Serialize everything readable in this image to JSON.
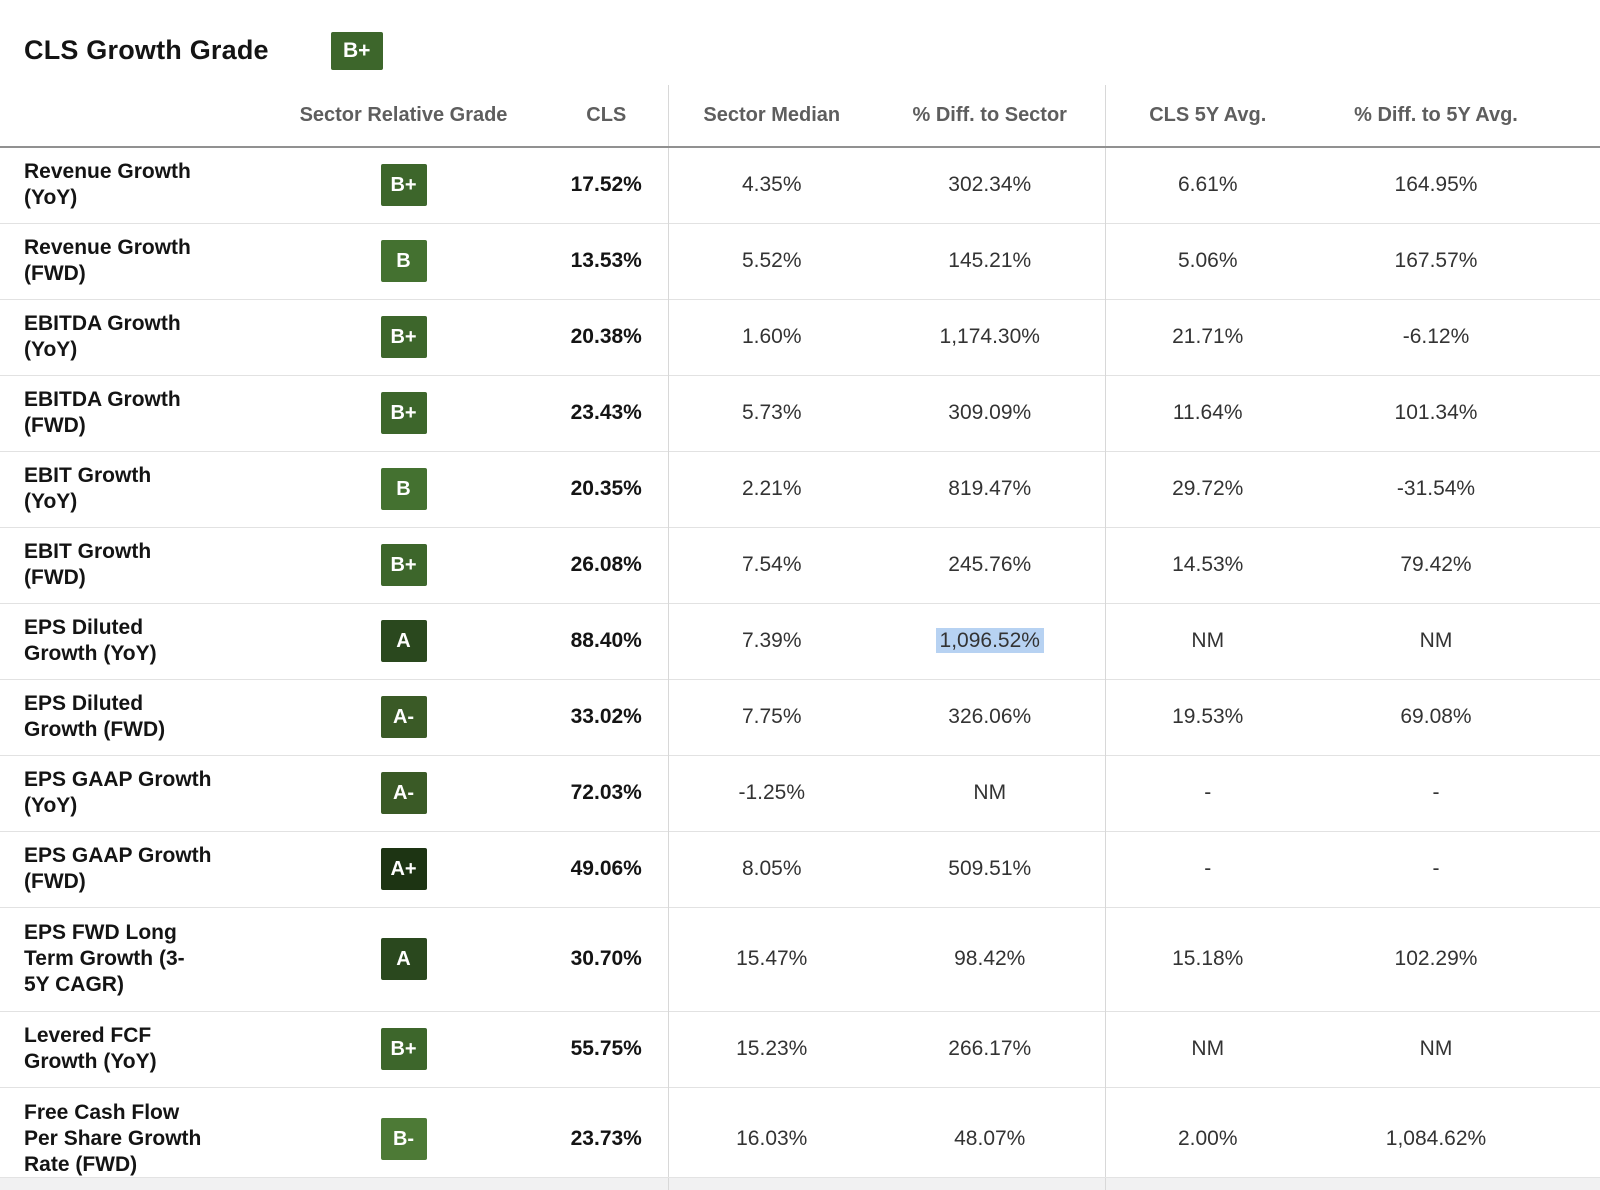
{
  "header": {
    "title": "CLS Growth Grade",
    "grade": "B+"
  },
  "grade_colors": {
    "A+": "#1d3413",
    "A": "#2a481e",
    "A-": "#3a5a26",
    "B+": "#3d662b",
    "B": "#447130",
    "B-": "#4d7a36"
  },
  "colors": {
    "header_text": "#5e5e5e",
    "selection_highlight": "#b7d2f2",
    "row_border": "#e2e2e2",
    "header_border": "#919191",
    "column_divider": "#d8d8d8"
  },
  "table": {
    "columns": [
      {
        "key": "grade",
        "label": "Sector Relative Grade"
      },
      {
        "key": "cls",
        "label": "CLS"
      },
      {
        "key": "sector_median",
        "label": "Sector Median"
      },
      {
        "key": "diff_sector",
        "label": "% Diff. to Sector"
      },
      {
        "key": "cls_5y",
        "label": "CLS 5Y Avg."
      },
      {
        "key": "diff_5y",
        "label": "% Diff. to 5Y Avg."
      }
    ],
    "rows": [
      {
        "label": "Revenue Growth\n(YoY)",
        "grade": "B+",
        "cls": "17.52%",
        "sector_median": "4.35%",
        "diff_sector": "302.34%",
        "cls_5y": "6.61%",
        "diff_5y": "164.95%"
      },
      {
        "label": "Revenue Growth\n(FWD)",
        "grade": "B",
        "cls": "13.53%",
        "sector_median": "5.52%",
        "diff_sector": "145.21%",
        "cls_5y": "5.06%",
        "diff_5y": "167.57%"
      },
      {
        "label": "EBITDA Growth\n(YoY)",
        "grade": "B+",
        "cls": "20.38%",
        "sector_median": "1.60%",
        "diff_sector": "1,174.30%",
        "cls_5y": "21.71%",
        "diff_5y": "-6.12%"
      },
      {
        "label": "EBITDA Growth\n(FWD)",
        "grade": "B+",
        "cls": "23.43%",
        "sector_median": "5.73%",
        "diff_sector": "309.09%",
        "cls_5y": "11.64%",
        "diff_5y": "101.34%"
      },
      {
        "label": "EBIT Growth\n(YoY)",
        "grade": "B",
        "cls": "20.35%",
        "sector_median": "2.21%",
        "diff_sector": "819.47%",
        "cls_5y": "29.72%",
        "diff_5y": "-31.54%"
      },
      {
        "label": "EBIT Growth\n(FWD)",
        "grade": "B+",
        "cls": "26.08%",
        "sector_median": "7.54%",
        "diff_sector": "245.76%",
        "cls_5y": "14.53%",
        "diff_5y": "79.42%"
      },
      {
        "label": "EPS Diluted\nGrowth (YoY)",
        "grade": "A",
        "cls": "88.40%",
        "sector_median": "7.39%",
        "diff_sector": "1,096.52%",
        "cls_5y": "NM",
        "diff_5y": "NM",
        "highlight": "diff_sector"
      },
      {
        "label": "EPS Diluted\nGrowth (FWD)",
        "grade": "A-",
        "cls": "33.02%",
        "sector_median": "7.75%",
        "diff_sector": "326.06%",
        "cls_5y": "19.53%",
        "diff_5y": "69.08%"
      },
      {
        "label": "EPS GAAP Growth\n(YoY)",
        "grade": "A-",
        "cls": "72.03%",
        "sector_median": "-1.25%",
        "diff_sector": "NM",
        "cls_5y": "-",
        "diff_5y": "-"
      },
      {
        "label": "EPS GAAP Growth\n(FWD)",
        "grade": "A+",
        "cls": "49.06%",
        "sector_median": "8.05%",
        "diff_sector": "509.51%",
        "cls_5y": "-",
        "diff_5y": "-"
      },
      {
        "label": "EPS FWD Long\nTerm Growth (3-\n5Y CAGR)",
        "grade": "A",
        "cls": "30.70%",
        "sector_median": "15.47%",
        "diff_sector": "98.42%",
        "cls_5y": "15.18%",
        "diff_5y": "102.29%"
      },
      {
        "label": "Levered FCF\nGrowth (YoY)",
        "grade": "B+",
        "cls": "55.75%",
        "sector_median": "15.23%",
        "diff_sector": "266.17%",
        "cls_5y": "NM",
        "diff_5y": "NM"
      },
      {
        "label": "Free Cash Flow\nPer Share Growth\nRate (FWD)",
        "grade": "B-",
        "cls": "23.73%",
        "sector_median": "16.03%",
        "diff_sector": "48.07%",
        "cls_5y": "2.00%",
        "diff_5y": "1,084.62%"
      }
    ]
  }
}
